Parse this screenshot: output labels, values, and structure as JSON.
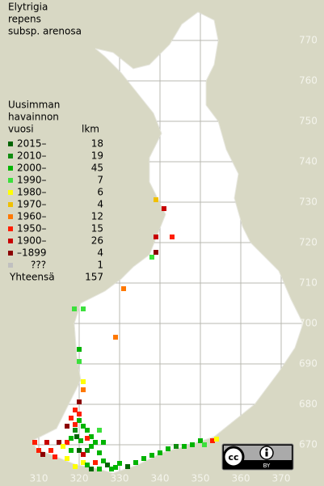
{
  "title_lines": [
    "Elytrigia",
    "repens",
    "subsp. arenosa"
  ],
  "legend": {
    "header_lines": [
      "Uusimman",
      "havainnon",
      "vuosi"
    ],
    "count_header": "lkm",
    "entries": [
      {
        "label": "2015–",
        "count": 18,
        "color": "#006400"
      },
      {
        "label": "2010–",
        "count": 19,
        "color": "#108c10"
      },
      {
        "label": "2000–",
        "count": 45,
        "color": "#00b400"
      },
      {
        "label": "1990–",
        "count": 7,
        "color": "#3ce03c"
      },
      {
        "label": "1980–",
        "count": 6,
        "color": "#ffff00"
      },
      {
        "label": "1970–",
        "count": 4,
        "color": "#f0c000"
      },
      {
        "label": "1960–",
        "count": 12,
        "color": "#ff7800"
      },
      {
        "label": "1950–",
        "count": 15,
        "color": "#ff1e00"
      },
      {
        "label": "1900–",
        "count": 26,
        "color": "#c80000"
      },
      {
        "label": "–1899",
        "count": 4,
        "color": "#8c0000"
      },
      {
        "label": "???",
        "count": 1,
        "color": "#c0c0c0"
      }
    ],
    "total_label": "Yhteensä",
    "total": 157
  },
  "xticks": [
    310,
    320,
    330,
    340,
    350,
    360,
    370
  ],
  "yticks": [
    670,
    680,
    690,
    700,
    710,
    720,
    730,
    740,
    750,
    760,
    770
  ],
  "license_badge": [
    "cc",
    "BY"
  ],
  "squares": [
    [
      339,
      730.6,
      5
    ],
    [
      341,
      728.4,
      8
    ],
    [
      339,
      721.4,
      8
    ],
    [
      343,
      721.4,
      7
    ],
    [
      339,
      717.6,
      9
    ],
    [
      338,
      716.4,
      3
    ],
    [
      331,
      708.6,
      6
    ],
    [
      318.8,
      703.6,
      3
    ],
    [
      321,
      703.6,
      3
    ],
    [
      329,
      696.6,
      6
    ],
    [
      320,
      693.6,
      2
    ],
    [
      320,
      690.6,
      3
    ],
    [
      321,
      685.6,
      4
    ],
    [
      321,
      683.6,
      6
    ],
    [
      320,
      680.6,
      9
    ],
    [
      319,
      678.6,
      7
    ],
    [
      320,
      677.6,
      7
    ],
    [
      318,
      676.6,
      7
    ],
    [
      320,
      676,
      2
    ],
    [
      319,
      675,
      7
    ],
    [
      317,
      674.6,
      9
    ],
    [
      321,
      674.6,
      2
    ],
    [
      319,
      673.6,
      1
    ],
    [
      322,
      673.6,
      2
    ],
    [
      325,
      673.6,
      3
    ],
    [
      323,
      672,
      2
    ],
    [
      309,
      670.6,
      7
    ],
    [
      312,
      670.6,
      8
    ],
    [
      315,
      670.6,
      9
    ],
    [
      317,
      670.6,
      7
    ],
    [
      318,
      671.6,
      2
    ],
    [
      319.4,
      672,
      0
    ],
    [
      320.4,
      671,
      2
    ],
    [
      322,
      671.6,
      7
    ],
    [
      324,
      670.6,
      2
    ],
    [
      326,
      670.6,
      2
    ],
    [
      310,
      668.6,
      7
    ],
    [
      313,
      668.6,
      7
    ],
    [
      316,
      669.6,
      4
    ],
    [
      318,
      668.6,
      2
    ],
    [
      320,
      668.6,
      0
    ],
    [
      322,
      668.6,
      1
    ],
    [
      323,
      669.6,
      2
    ],
    [
      325,
      668,
      2
    ],
    [
      311,
      667.6,
      9
    ],
    [
      314,
      667,
      7
    ],
    [
      317,
      666.6,
      4
    ],
    [
      321,
      667.6,
      8
    ],
    [
      319,
      664.6,
      4
    ],
    [
      321,
      665.6,
      4
    ],
    [
      322,
      665,
      2
    ],
    [
      324,
      665.6,
      7
    ],
    [
      326,
      666,
      2
    ],
    [
      327,
      665,
      0
    ],
    [
      329,
      664.4,
      2
    ],
    [
      332,
      664.6,
      0
    ],
    [
      334,
      665.6,
      2
    ],
    [
      336,
      666.6,
      2
    ],
    [
      338,
      667.4,
      2
    ],
    [
      340,
      668,
      2
    ],
    [
      342,
      669,
      2
    ],
    [
      344,
      669.6,
      1
    ],
    [
      346,
      669.6,
      2
    ],
    [
      348,
      670,
      2
    ],
    [
      350,
      671,
      2
    ],
    [
      351,
      670,
      3
    ],
    [
      353,
      671,
      7
    ],
    [
      354,
      671.4,
      4
    ],
    [
      323,
      664,
      0
    ],
    [
      325,
      664,
      2
    ],
    [
      330,
      665.4,
      2
    ],
    [
      328,
      664,
      2
    ]
  ]
}
